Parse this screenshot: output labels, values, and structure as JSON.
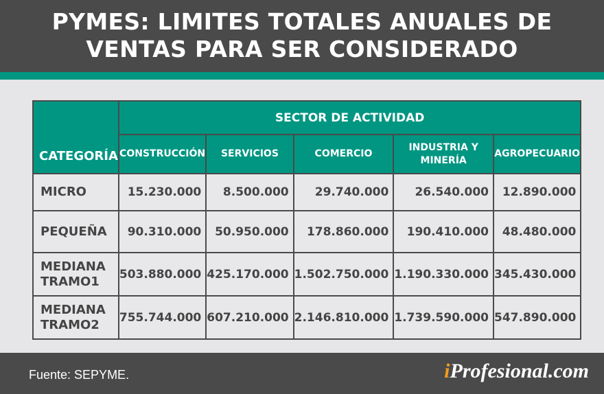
{
  "title_line1": "PYMES: LIMITES TOTALES ANUALES DE",
  "title_line2": "VENTAS PARA SER CONSIDERADO",
  "colors": {
    "header_bg": "#4a4a4a",
    "accent": "#009682",
    "cell_bg": "#e8e8ea",
    "logo_i": "#f39c1a"
  },
  "chart_data": {
    "type": "table",
    "group_header": "SECTOR DE ACTIVIDAD",
    "row_header": "CATEGORÍA",
    "columns": [
      "CONSTRUCCIÓN",
      "SERVICIOS",
      "COMERCIO",
      "INDUSTRIA Y MINERÍA",
      "AGROPECUARIO"
    ],
    "rows": [
      {
        "label": "MICRO",
        "values": [
          "15.230.000",
          "8.500.000",
          "29.740.000",
          "26.540.000",
          "12.890.000"
        ]
      },
      {
        "label": "PEQUEÑA",
        "values": [
          "90.310.000",
          "50.950.000",
          "178.860.000",
          "190.410.000",
          "48.480.000"
        ]
      },
      {
        "label": "MEDIANA TRAMO1",
        "values": [
          "503.880.000",
          "425.170.000",
          "1.502.750.000",
          "1.190.330.000",
          "345.430.000"
        ]
      },
      {
        "label": "MEDIANA TRAMO2",
        "values": [
          "755.744.000",
          "607.210.000",
          "2.146.810.000",
          "1.739.590.000",
          "547.890.000"
        ]
      }
    ]
  },
  "footer": {
    "source": "Fuente: SEPYME.",
    "logo_i": "i",
    "logo_rest": "Profesional.com"
  }
}
